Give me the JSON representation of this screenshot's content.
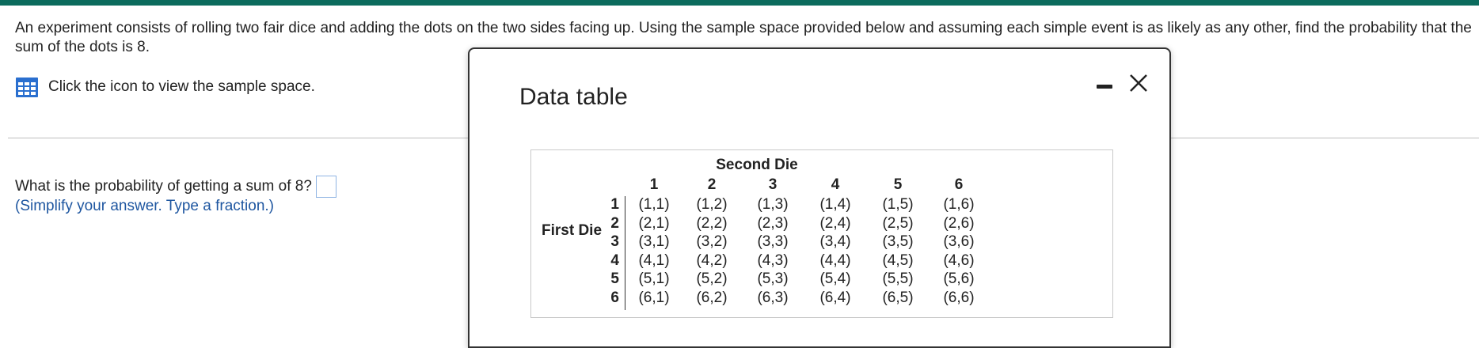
{
  "question": {
    "text": "An experiment consists of rolling two fair dice and adding the dots on the two sides facing up. Using the sample space provided below and assuming each simple event is as likely as any other, find the probability that the sum of the dots is 8."
  },
  "hint": {
    "icon": "table-grid-icon",
    "text": "Click the icon to view the sample space."
  },
  "prompt": {
    "text": "What is the probability of getting a sum of 8?",
    "answer_value": "",
    "instruction": "(Simplify your answer. Type a fraction.)"
  },
  "dialog": {
    "title": "Data table",
    "minimize_icon": "minimize-icon",
    "close_icon": "close-icon",
    "table": {
      "col_header": "Second Die",
      "row_header": "First Die",
      "columns": [
        "1",
        "2",
        "3",
        "4",
        "5",
        "6"
      ],
      "rows": [
        {
          "label": "1",
          "cells": [
            "(1,1)",
            "(1,2)",
            "(1,3)",
            "(1,4)",
            "(1,5)",
            "(1,6)"
          ]
        },
        {
          "label": "2",
          "cells": [
            "(2,1)",
            "(2,2)",
            "(2,3)",
            "(2,4)",
            "(2,5)",
            "(2,6)"
          ]
        },
        {
          "label": "3",
          "cells": [
            "(3,1)",
            "(3,2)",
            "(3,3)",
            "(3,4)",
            "(3,5)",
            "(3,6)"
          ]
        },
        {
          "label": "4",
          "cells": [
            "(4,1)",
            "(4,2)",
            "(4,3)",
            "(4,4)",
            "(4,5)",
            "(4,6)"
          ]
        },
        {
          "label": "5",
          "cells": [
            "(5,1)",
            "(5,2)",
            "(5,3)",
            "(5,4)",
            "(5,5)",
            "(5,6)"
          ]
        },
        {
          "label": "6",
          "cells": [
            "(6,1)",
            "(6,2)",
            "(6,3)",
            "(6,4)",
            "(6,5)",
            "(6,6)"
          ]
        }
      ]
    }
  },
  "colors": {
    "top_bar": "#0b6b5d",
    "instruction_text": "#1e56a0",
    "icon_blue": "#2a6fcf"
  }
}
